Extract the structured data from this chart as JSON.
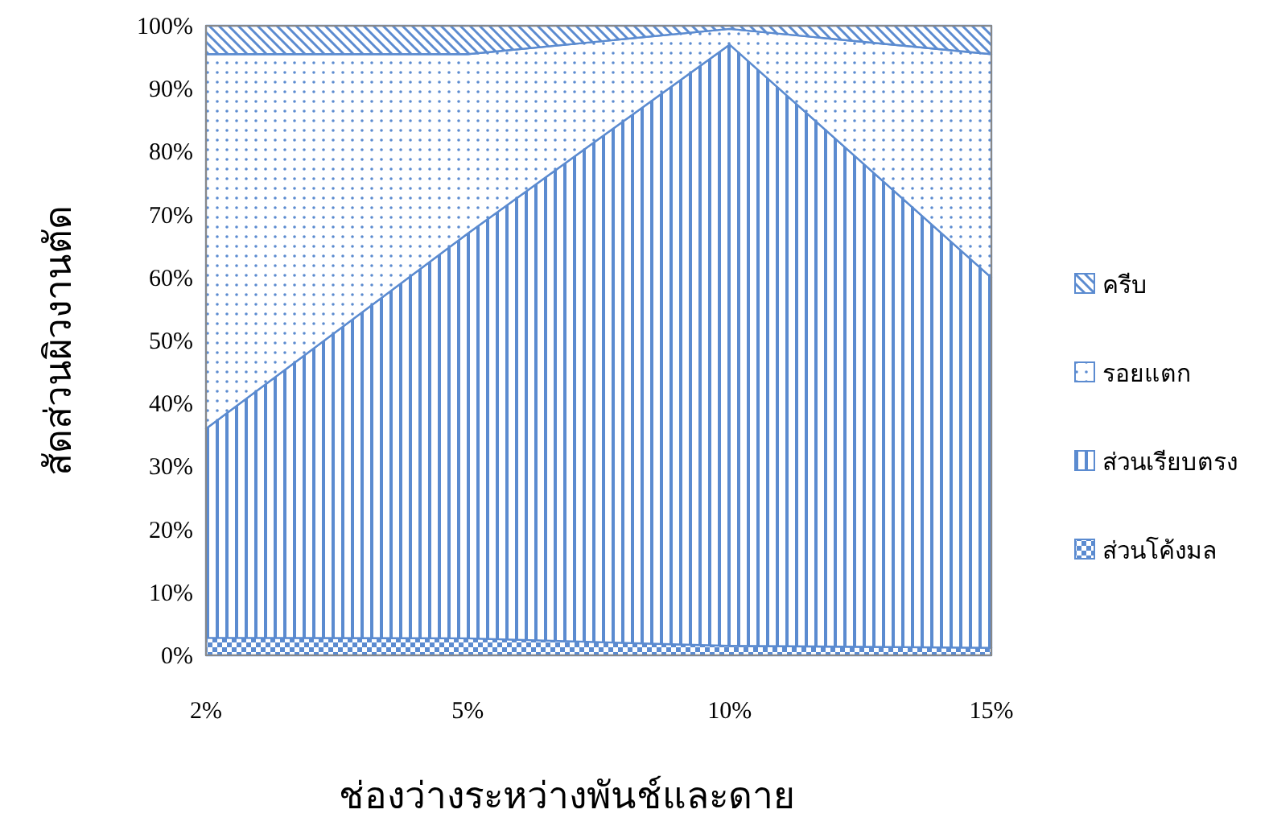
{
  "chart_data": {
    "type": "area",
    "stacked": true,
    "xlabel": "ช่องว่างระหว่างพันช์และดาย",
    "ylabel": "สัดส่วนผิวงานตัด",
    "categories": [
      "2%",
      "5%",
      "10%",
      "15%"
    ],
    "ylim": [
      0,
      100
    ],
    "yticks": [
      {
        "value": 0,
        "label": "0%"
      },
      {
        "value": 10,
        "label": "10%"
      },
      {
        "value": 20,
        "label": "20%"
      },
      {
        "value": 30,
        "label": "30%"
      },
      {
        "value": 40,
        "label": "40%"
      },
      {
        "value": 50,
        "label": "50%"
      },
      {
        "value": 60,
        "label": "60%"
      },
      {
        "value": 70,
        "label": "70%"
      },
      {
        "value": 80,
        "label": "80%"
      },
      {
        "value": 90,
        "label": "90%"
      },
      {
        "value": 100,
        "label": "100%"
      }
    ],
    "legend": "right",
    "grid": false,
    "series": [
      {
        "name": "ส่วนโค้งมล",
        "color": "#5b8bd0",
        "values": [
          2.8,
          2.7,
          1.5,
          1.2
        ]
      },
      {
        "name": "ส่วนเรียบตรง",
        "color": "#5b8bd0",
        "values": [
          33.2,
          64.3,
          95.5,
          58.8
        ]
      },
      {
        "name": "รอยแตก",
        "color": "#5b8bd0",
        "values": [
          59.5,
          28.5,
          2.5,
          35.5
        ]
      },
      {
        "name": "ครีบ",
        "color": "#5b8bd0",
        "values": [
          4.5,
          4.5,
          0.5,
          4.5
        ]
      }
    ]
  }
}
